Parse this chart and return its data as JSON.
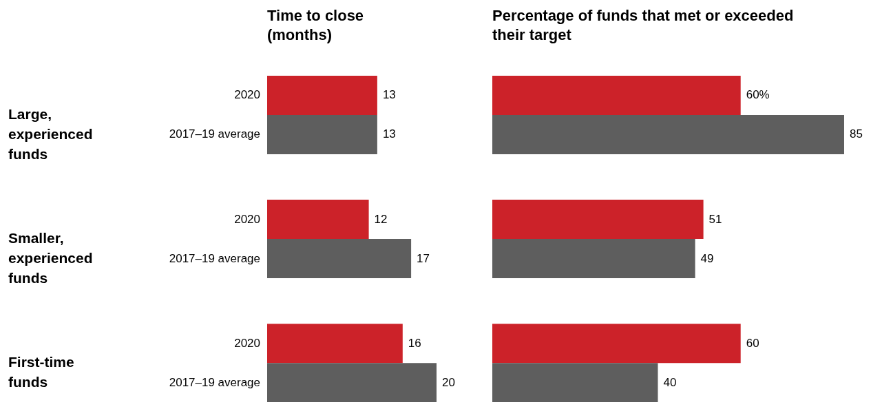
{
  "chart_data": [
    {
      "type": "bar",
      "orientation": "horizontal",
      "title": "Time to close (months)",
      "categories": [
        "Large, experienced funds",
        "Smaller, experienced funds",
        "First-time funds"
      ],
      "data_labels": true,
      "series": [
        {
          "name": "2020",
          "color": "#cc2229",
          "values": [
            13,
            12,
            16
          ]
        },
        {
          "name": "2017–19 average",
          "color": "#5e5e5e",
          "values": [
            13,
            17,
            20
          ]
        }
      ]
    },
    {
      "type": "bar",
      "orientation": "horizontal",
      "title": "Percentage of funds that met or exceeded their target",
      "series": [
        {
          "color": "#cc2229",
          "values": [
            60,
            51,
            60
          ],
          "value_labels": [
            "60%",
            "51",
            "60"
          ]
        },
        {
          "color": "#5e5e5e",
          "values": [
            85,
            49,
            40
          ],
          "value_labels": [
            "85",
            "49",
            "40"
          ]
        }
      ]
    }
  ]
}
